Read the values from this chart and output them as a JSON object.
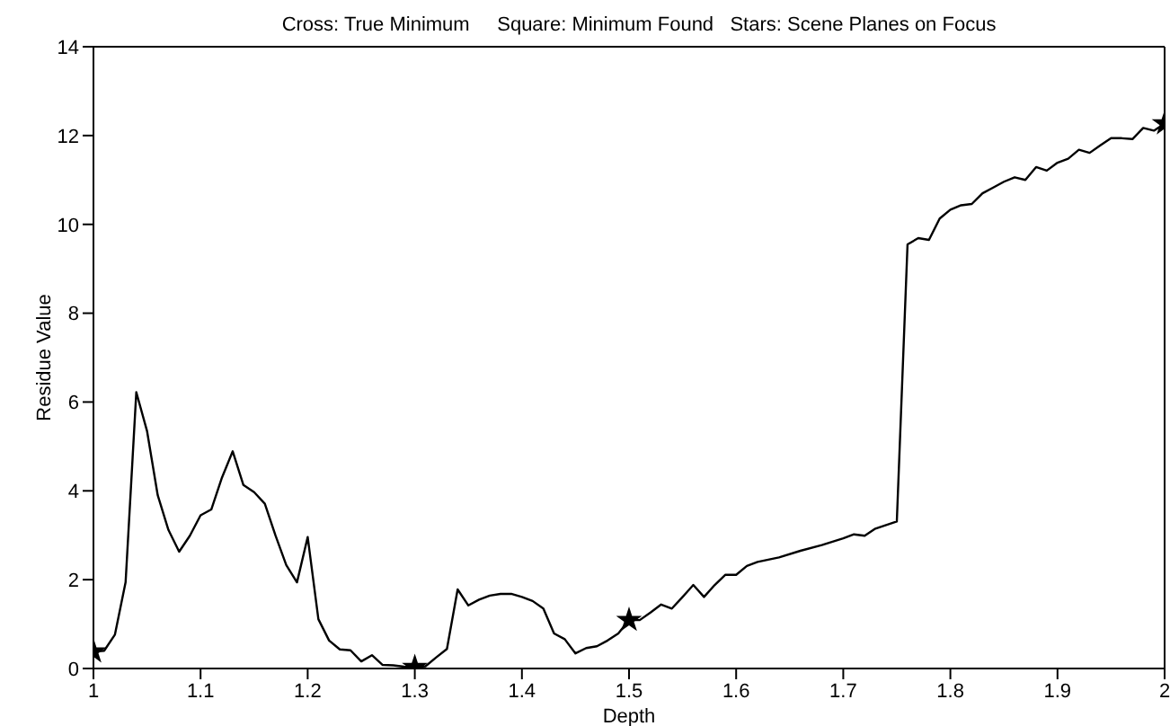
{
  "chart_data": {
    "type": "line",
    "title": "Cross: True Minimum     Square: Minimum Found   Stars: Scene Planes on Focus",
    "xlabel": "Depth",
    "ylabel": "Residue Value",
    "xlim": [
      1,
      2
    ],
    "xticks": [
      1,
      1.1,
      1.2,
      1.3,
      1.4,
      1.5,
      1.6,
      1.7,
      1.8,
      1.9,
      2
    ],
    "ylim": [
      0,
      14
    ],
    "yticks": [
      0,
      2,
      4,
      6,
      8,
      10,
      12,
      14
    ],
    "legend": false,
    "series": [
      {
        "color": "#000000",
        "marker": "none",
        "x": [
          1,
          1.01,
          1.02,
          1.03,
          1.04,
          1.05,
          1.06,
          1.07,
          1.08,
          1.09,
          1.1,
          1.11,
          1.12,
          1.13,
          1.14,
          1.15,
          1.16,
          1.17,
          1.18,
          1.19,
          1.2,
          1.21,
          1.22,
          1.23,
          1.24,
          1.25,
          1.26,
          1.27,
          1.28,
          1.29,
          1.3,
          1.31,
          1.32,
          1.33,
          1.34,
          1.35,
          1.36,
          1.37,
          1.38,
          1.39,
          1.4,
          1.41,
          1.42,
          1.43,
          1.44,
          1.45,
          1.46,
          1.47,
          1.48,
          1.49,
          1.5,
          1.51,
          1.52,
          1.53,
          1.54,
          1.55,
          1.56,
          1.57,
          1.58,
          1.59,
          1.6,
          1.61,
          1.62,
          1.64,
          1.66,
          1.68,
          1.7,
          1.71,
          1.72,
          1.73,
          1.74,
          1.75,
          1.76,
          1.77,
          1.78,
          1.79,
          1.8,
          1.81,
          1.82,
          1.83,
          1.84,
          1.85,
          1.86,
          1.87,
          1.88,
          1.89,
          1.9,
          1.91,
          1.92,
          1.93,
          1.94,
          1.95,
          1.96,
          1.97,
          1.98,
          1.99,
          2
        ],
        "values": [
          0.38,
          0.4,
          0.76,
          1.94,
          6.22,
          5.35,
          3.9,
          3.12,
          2.63,
          2.99,
          3.45,
          3.58,
          4.3,
          4.89,
          4.13,
          3.97,
          3.71,
          2.99,
          2.33,
          1.94,
          2.96,
          1.11,
          0.63,
          0.43,
          0.41,
          0.16,
          0.3,
          0.08,
          0.07,
          0.04,
          0.03,
          0.05,
          0.25,
          0.44,
          1.78,
          1.42,
          1.55,
          1.64,
          1.68,
          1.68,
          1.61,
          1.52,
          1.35,
          0.79,
          0.66,
          0.34,
          0.46,
          0.5,
          0.63,
          0.79,
          1.09,
          1.09,
          1.26,
          1.44,
          1.35,
          1.61,
          1.88,
          1.61,
          1.88,
          2.11,
          2.11,
          2.31,
          2.4,
          2.5,
          2.65,
          2.78,
          2.93,
          3.02,
          2.99,
          3.15,
          3.23,
          3.31,
          9.55,
          9.69,
          9.65,
          10.13,
          10.33,
          10.43,
          10.46,
          10.7,
          10.83,
          10.96,
          11.06,
          11,
          11.29,
          11.21,
          11.39,
          11.48,
          11.68,
          11.61,
          11.78,
          11.94,
          11.94,
          11.92,
          12.17,
          12.11,
          12.27
        ]
      },
      {
        "type": "scatter",
        "color": "#000000",
        "marker": "star",
        "x": [
          1,
          1.3,
          1.5,
          2
        ],
        "values": [
          0.38,
          0.03,
          1.09,
          12.27
        ]
      }
    ]
  }
}
